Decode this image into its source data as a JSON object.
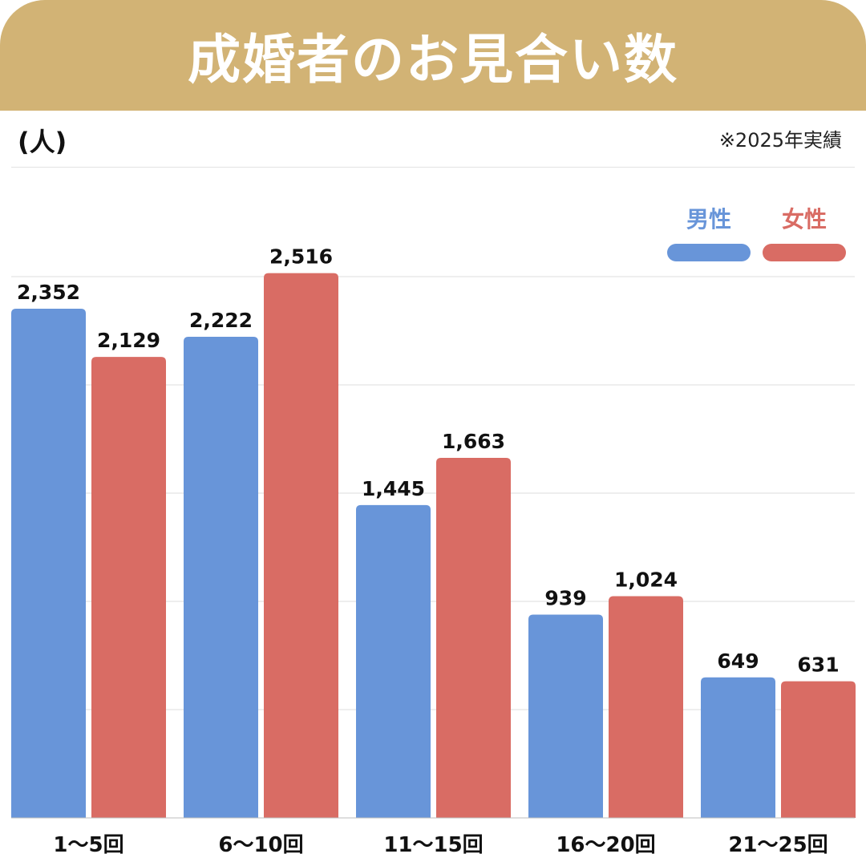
{
  "header": {
    "title": "成婚者のお見合い数"
  },
  "unit_label": "(人)",
  "note": "※2025年実績",
  "colors": {
    "header_bg": "#d2b375",
    "male": "#6895d9",
    "female": "#d96c64"
  },
  "chart_data": {
    "type": "bar",
    "title": "成婚者のお見合い数",
    "ylabel": "(人)",
    "categories": [
      "1〜5回",
      "6〜10回",
      "11〜15回",
      "16〜20回",
      "21〜25回"
    ],
    "series": [
      {
        "name": "男性",
        "color": "#6895d9",
        "values": [
          2352,
          2222,
          1445,
          939,
          649
        ],
        "labels": [
          "2,352",
          "2,222",
          "1,445",
          "939",
          "649"
        ]
      },
      {
        "name": "女性",
        "color": "#d96c64",
        "values": [
          2129,
          2516,
          1663,
          1024,
          631
        ],
        "labels": [
          "2,129",
          "2,516",
          "1,663",
          "1,024",
          "631"
        ]
      }
    ],
    "ylim": [
      0,
      2500
    ],
    "grid": true,
    "legend": "top-right"
  }
}
